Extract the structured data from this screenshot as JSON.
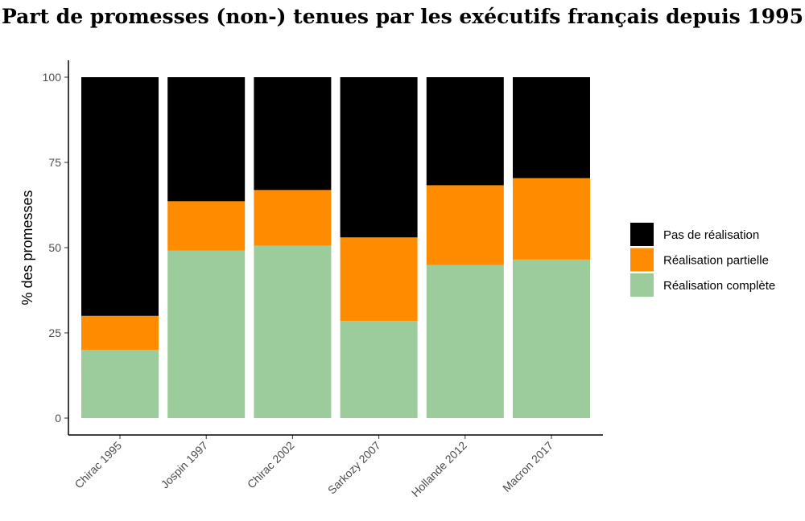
{
  "chart_data": {
    "type": "bar",
    "stacked": true,
    "title": "Part de promesses (non-) tenues par les exécutifs français depuis 1995",
    "xlabel": "",
    "ylabel": "% des promesses",
    "ylim": [
      0,
      100
    ],
    "yticks": [
      0,
      25,
      50,
      75,
      100
    ],
    "grid": false,
    "legend": "right",
    "categories": [
      "Chirac 1995",
      "Jospin 1997",
      "Chirac 2002",
      "Sarkozy 2007",
      "Hollande 2012",
      "Macron 2017"
    ],
    "series": [
      {
        "name": "Réalisation complète",
        "color": "#9ccc9c",
        "values": [
          20.0,
          49.1,
          50.6,
          28.5,
          44.9,
          46.5
        ]
      },
      {
        "name": "Réalisation partielle",
        "color": "#ff8c00",
        "values": [
          10.0,
          14.5,
          16.3,
          24.5,
          23.4,
          23.9
        ]
      },
      {
        "name": "Pas de réalisation",
        "color": "#000000",
        "values": [
          70.0,
          36.4,
          33.1,
          47.0,
          31.7,
          29.6
        ]
      }
    ],
    "legend_order": [
      "Pas de réalisation",
      "Réalisation partielle",
      "Réalisation complète"
    ]
  }
}
